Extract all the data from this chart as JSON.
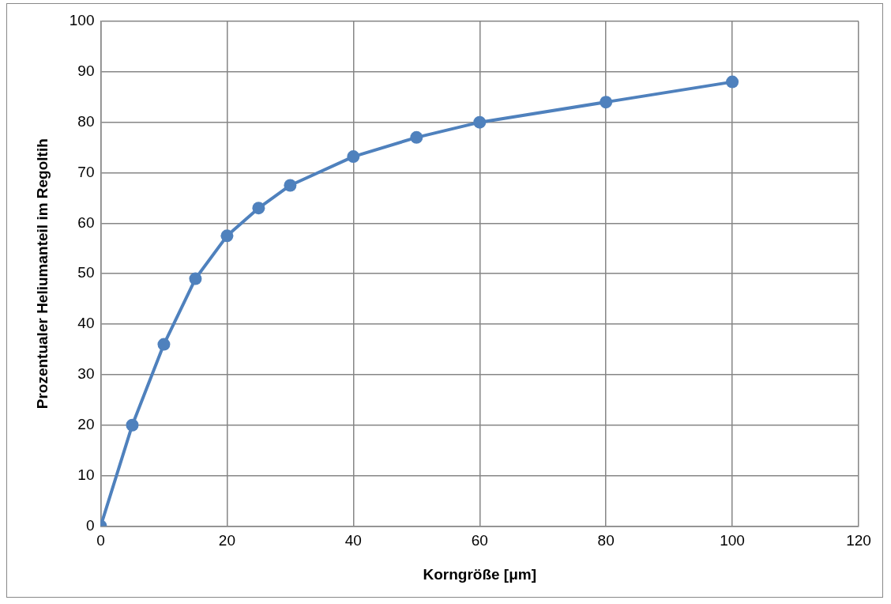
{
  "chart_data": {
    "type": "line",
    "xlabel": "Korngröße [μm]",
    "ylabel": "Prozentualer Heliumanteil im Regoltih",
    "x": [
      0,
      5,
      10,
      15,
      20,
      25,
      30,
      40,
      50,
      60,
      80,
      100
    ],
    "series": [
      {
        "color": "#4f81bd",
        "values": [
          0,
          20,
          36,
          49,
          57.5,
          63,
          67.5,
          73.2,
          77,
          80,
          84,
          88
        ]
      }
    ],
    "xlim": [
      0,
      120
    ],
    "xticks": [
      0,
      20,
      40,
      60,
      80,
      100,
      120
    ],
    "ylim": [
      0,
      100
    ],
    "yticks": [
      0,
      10,
      20,
      30,
      40,
      50,
      60,
      70,
      80,
      90,
      100
    ],
    "grid": true,
    "legend": false,
    "marker": "circle",
    "line_style": "solid"
  }
}
